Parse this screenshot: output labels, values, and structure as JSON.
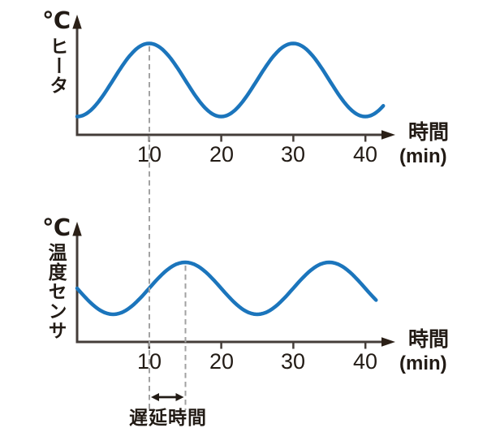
{
  "colors": {
    "curve": "#1b75bc",
    "axis": "#443d39",
    "arrow": "#2b2017",
    "text": "#221b15",
    "dashed": "#a2a2a2",
    "background": "#ffffff"
  },
  "chart_data": [
    {
      "type": "line",
      "name": "heater-temperature",
      "y_axis_unit": "℃",
      "y_axis_label": "ヒータ",
      "x_axis_label": "時間",
      "x_axis_unit": "(min)",
      "x_ticks": [
        10,
        20,
        30,
        40
      ],
      "x_range": [
        0,
        42.5
      ],
      "grid": false,
      "legend": false,
      "wave": {
        "shape": "sinusoid",
        "period_min": 20,
        "peak_times_min": [
          10,
          30
        ],
        "trough_times_min": [
          0,
          20,
          40
        ],
        "amplitude_rel": 1.0
      },
      "series": [
        {
          "name": "ヒータ",
          "x_min": [
            0,
            2.5,
            5,
            7.5,
            10,
            12.5,
            15,
            17.5,
            20,
            22.5,
            25,
            27.5,
            30,
            32.5,
            35,
            37.5,
            40,
            42.5
          ],
          "y_norm": [
            0,
            0.15,
            0.5,
            0.85,
            1,
            0.85,
            0.5,
            0.15,
            0,
            0.15,
            0.5,
            0.85,
            1,
            0.85,
            0.5,
            0.15,
            0,
            0.15
          ]
        }
      ]
    },
    {
      "type": "line",
      "name": "temperature-sensor",
      "y_axis_unit": "℃",
      "y_axis_label": "温度センサ",
      "x_axis_label": "時間",
      "x_axis_unit": "(min)",
      "x_ticks": [
        10,
        20,
        30,
        40
      ],
      "x_range": [
        0,
        41.5
      ],
      "grid": false,
      "legend": false,
      "wave": {
        "shape": "sinusoid",
        "period_min": 20,
        "peak_times_min": [
          15,
          35
        ],
        "trough_times_min": [
          5,
          25
        ],
        "amplitude_rel": 0.7
      },
      "series": [
        {
          "name": "温度センサ",
          "x_min": [
            0,
            2.5,
            5,
            7.5,
            10,
            12.5,
            15,
            17.5,
            20,
            22.5,
            25,
            27.5,
            30,
            32.5,
            35,
            37.5,
            40,
            41.5
          ],
          "y_norm": [
            0.5,
            0.15,
            0,
            0.15,
            0.5,
            0.85,
            1,
            0.85,
            0.5,
            0.15,
            0,
            0.15,
            0.5,
            0.85,
            1,
            0.85,
            0.5,
            0.27
          ]
        }
      ]
    }
  ],
  "annotation": {
    "label": "遅延時間",
    "from_min": 10,
    "to_min": 15,
    "duration_min": 5
  }
}
